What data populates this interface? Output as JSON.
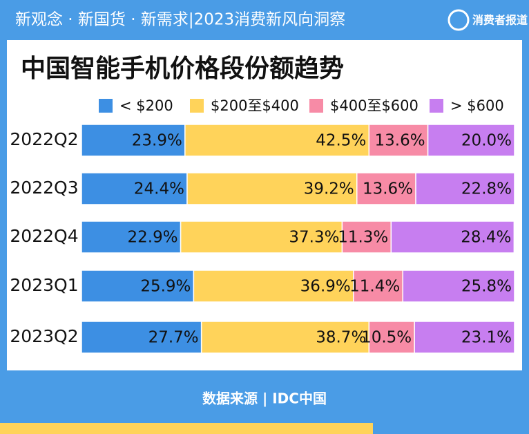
{
  "header": {
    "banner": "新观念 · 新国货 · 新需求|2023消费新风向洞察",
    "logo": "消费者报道"
  },
  "chart_data": {
    "type": "stacked-bar-horizontal",
    "title": "中国智能手机价格段份额趋势",
    "categories": [
      "2022Q2",
      "2022Q3",
      "2022Q4",
      "2023Q1",
      "2023Q2"
    ],
    "xlim": [
      0,
      100
    ],
    "series": [
      {
        "name": "< $200",
        "color": "#3d8fe3",
        "values": [
          23.9,
          24.4,
          22.9,
          25.9,
          27.7
        ],
        "value_labels": [
          "23.9%",
          "24.4%",
          "22.9%",
          "25.9%",
          "27.7%"
        ]
      },
      {
        "name": "$200至$400",
        "color": "#ffd35a",
        "values": [
          42.5,
          39.2,
          37.3,
          36.9,
          38.7
        ],
        "value_labels": [
          "42.5%",
          "39.2%",
          "37.3%",
          "36.9%",
          "38.7%"
        ]
      },
      {
        "name": "$400至$600",
        "color": "#f78ba6",
        "values": [
          13.6,
          13.6,
          11.3,
          11.4,
          10.5
        ],
        "value_labels": [
          "13.6%",
          "13.6%",
          "11.3%",
          "11.4%",
          "10.5%"
        ]
      },
      {
        "name": "> $600",
        "color": "#c77ef0",
        "values": [
          20.0,
          22.8,
          28.4,
          25.8,
          23.1
        ],
        "value_labels": [
          "20.0%",
          "22.8%",
          "28.4%",
          "25.8%",
          "23.1%"
        ]
      }
    ]
  },
  "footer": {
    "source": "数据来源 | IDC中国"
  }
}
